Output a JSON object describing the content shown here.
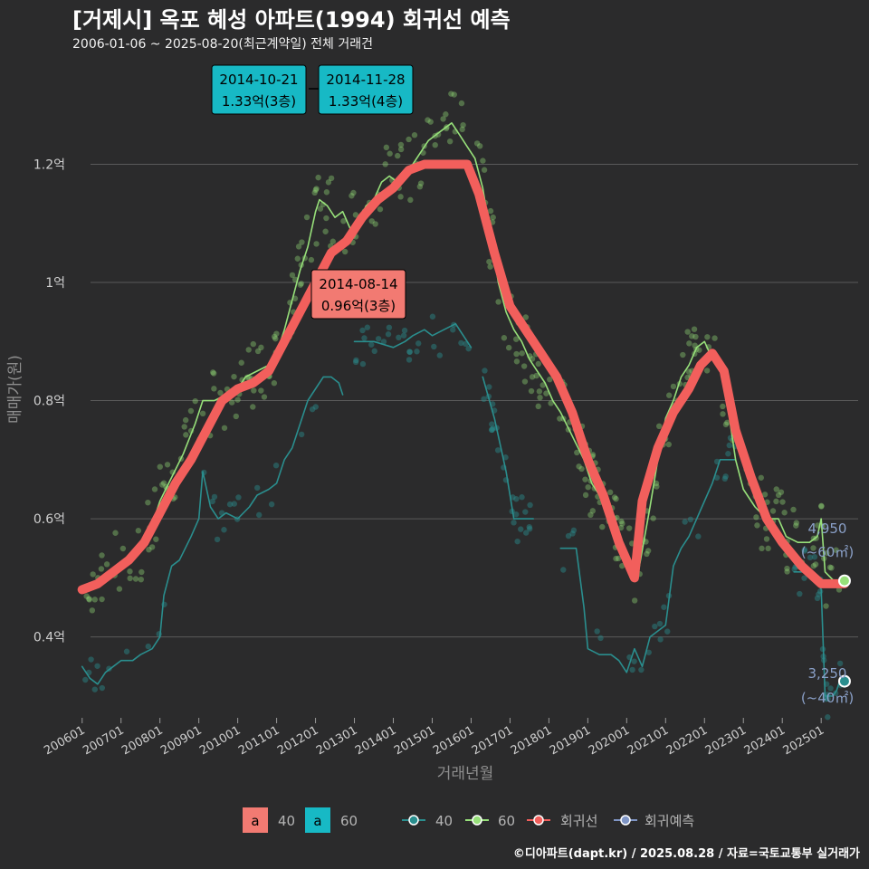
{
  "header": {
    "title": "[거제시] 옥포 혜성 아파트(1994) 회귀선 예측",
    "subtitle": "2006-01-06 ~ 2025-08-20(최근계약일) 전체 거래건"
  },
  "caption": "©디아파트(dapt.kr) / 2025.08.28 / 자료=국토교통부 실거래가",
  "colors": {
    "background": "#2b2b2c",
    "grid": "#5a5a5a",
    "series_40": "#2a8e8e",
    "series_60": "#97e07a",
    "regression": "#f25f5c",
    "forecast": "#7f95c5",
    "callout_40": "#f27a72",
    "callout_60": "#17b9c5",
    "end_label": "#8aa0c8"
  },
  "chart_data": {
    "type": "line",
    "xlabel": "거래년월",
    "ylabel": "매매가(원)",
    "ylim": [
      0.26,
      1.38
    ],
    "y_unit": "억",
    "yticks": [
      {
        "value": 0.4,
        "label": "0.4억"
      },
      {
        "value": 0.6,
        "label": "0.6억"
      },
      {
        "value": 0.8,
        "label": "0.8억"
      },
      {
        "value": 1.0,
        "label": "1억"
      },
      {
        "value": 1.2,
        "label": "1.2억"
      }
    ],
    "xlim": [
      2005.75,
      2025.95
    ],
    "xticks": [
      {
        "value": 2006.0,
        "label": "200601"
      },
      {
        "value": 2007.0,
        "label": "200701"
      },
      {
        "value": 2008.0,
        "label": "200801"
      },
      {
        "value": 2009.0,
        "label": "200901"
      },
      {
        "value": 2010.0,
        "label": "201001"
      },
      {
        "value": 2011.0,
        "label": "201101"
      },
      {
        "value": 2012.0,
        "label": "201201"
      },
      {
        "value": 2013.0,
        "label": "201301"
      },
      {
        "value": 2014.0,
        "label": "201401"
      },
      {
        "value": 2015.0,
        "label": "201501"
      },
      {
        "value": 2016.0,
        "label": "201601"
      },
      {
        "value": 2017.0,
        "label": "201701"
      },
      {
        "value": 2018.0,
        "label": "201801"
      },
      {
        "value": 2019.0,
        "label": "201901"
      },
      {
        "value": 2020.0,
        "label": "202001"
      },
      {
        "value": 2021.0,
        "label": "202101"
      },
      {
        "value": 2022.0,
        "label": "202201"
      },
      {
        "value": 2023.0,
        "label": "202301"
      },
      {
        "value": 2024.0,
        "label": "202401"
      },
      {
        "value": 2025.0,
        "label": "202501"
      }
    ],
    "series": [
      {
        "name": "40",
        "points": [
          [
            2006.0,
            0.35
          ],
          [
            2006.2,
            0.33
          ],
          [
            2006.4,
            0.32
          ],
          [
            2006.6,
            0.34
          ],
          [
            2006.8,
            0.35
          ],
          [
            2007.0,
            0.36
          ],
          [
            2007.3,
            0.36
          ],
          [
            2007.5,
            0.37
          ],
          [
            2007.8,
            0.38
          ],
          [
            2008.0,
            0.4
          ],
          [
            2008.1,
            0.47
          ],
          [
            2008.3,
            0.52
          ],
          [
            2008.5,
            0.53
          ],
          [
            2008.8,
            0.57
          ],
          [
            2009.0,
            0.6
          ],
          [
            2009.1,
            0.68
          ],
          [
            2009.3,
            0.62
          ],
          [
            2009.5,
            0.6
          ],
          [
            2009.7,
            0.61
          ],
          [
            2010.0,
            0.6
          ],
          [
            2010.3,
            0.62
          ],
          [
            2010.5,
            0.64
          ],
          [
            2010.8,
            0.65
          ],
          [
            2011.0,
            0.66
          ],
          [
            2011.2,
            0.7
          ],
          [
            2011.4,
            0.72
          ],
          [
            2011.6,
            0.76
          ],
          [
            2011.8,
            0.8
          ],
          [
            2012.0,
            0.82
          ],
          [
            2012.2,
            0.84
          ],
          [
            2012.4,
            0.84
          ],
          [
            2012.6,
            0.83
          ],
          [
            2012.7,
            0.81
          ]
        ]
      },
      {
        "name": "40b",
        "points": [
          [
            2013.0,
            0.9
          ],
          [
            2013.5,
            0.9
          ],
          [
            2014.0,
            0.89
          ],
          [
            2014.3,
            0.9
          ],
          [
            2014.5,
            0.91
          ],
          [
            2014.8,
            0.92
          ],
          [
            2015.0,
            0.91
          ],
          [
            2015.3,
            0.92
          ],
          [
            2015.6,
            0.93
          ],
          [
            2015.8,
            0.91
          ],
          [
            2016.0,
            0.89
          ]
        ]
      },
      {
        "name": "40c",
        "points": [
          [
            2016.3,
            0.84
          ],
          [
            2016.6,
            0.77
          ],
          [
            2016.9,
            0.68
          ],
          [
            2017.1,
            0.6
          ],
          [
            2017.6,
            0.6
          ]
        ]
      },
      {
        "name": "40d",
        "points": [
          [
            2018.3,
            0.55
          ],
          [
            2018.7,
            0.55
          ],
          [
            2018.9,
            0.45
          ],
          [
            2019.0,
            0.38
          ],
          [
            2019.3,
            0.37
          ],
          [
            2019.6,
            0.37
          ],
          [
            2019.8,
            0.36
          ],
          [
            2020.0,
            0.34
          ],
          [
            2020.2,
            0.38
          ],
          [
            2020.4,
            0.35
          ],
          [
            2020.6,
            0.4
          ],
          [
            2020.8,
            0.41
          ],
          [
            2021.0,
            0.42
          ],
          [
            2021.1,
            0.47
          ],
          [
            2021.2,
            0.52
          ],
          [
            2021.4,
            0.55
          ],
          [
            2021.6,
            0.57
          ],
          [
            2021.8,
            0.6
          ],
          [
            2022.0,
            0.63
          ],
          [
            2022.2,
            0.66
          ],
          [
            2022.4,
            0.7
          ],
          [
            2022.8,
            0.7
          ]
        ]
      },
      {
        "name": "40e",
        "points": [
          [
            2024.3,
            0.51
          ],
          [
            2024.6,
            0.51
          ],
          [
            2024.9,
            0.5
          ],
          [
            2025.0,
            0.48
          ],
          [
            2025.1,
            0.3
          ],
          [
            2025.3,
            0.3
          ],
          [
            2025.4,
            0.31
          ],
          [
            2025.5,
            0.33
          ],
          [
            2025.6,
            0.325
          ]
        ]
      },
      {
        "name": "60",
        "points": [
          [
            2006.0,
            0.48
          ],
          [
            2006.3,
            0.49
          ],
          [
            2006.6,
            0.5
          ],
          [
            2006.9,
            0.52
          ],
          [
            2007.2,
            0.53
          ],
          [
            2007.5,
            0.55
          ],
          [
            2007.8,
            0.59
          ],
          [
            2008.0,
            0.63
          ],
          [
            2008.3,
            0.67
          ],
          [
            2008.6,
            0.71
          ],
          [
            2008.9,
            0.76
          ],
          [
            2009.1,
            0.8
          ],
          [
            2009.4,
            0.8
          ],
          [
            2009.7,
            0.81
          ],
          [
            2010.0,
            0.82
          ],
          [
            2010.2,
            0.84
          ],
          [
            2010.5,
            0.85
          ],
          [
            2010.8,
            0.86
          ],
          [
            2011.0,
            0.88
          ],
          [
            2011.2,
            0.92
          ],
          [
            2011.4,
            0.97
          ],
          [
            2011.6,
            1.02
          ],
          [
            2011.8,
            1.06
          ],
          [
            2012.0,
            1.12
          ],
          [
            2012.1,
            1.14
          ],
          [
            2012.3,
            1.13
          ],
          [
            2012.5,
            1.11
          ],
          [
            2012.7,
            1.12
          ],
          [
            2012.9,
            1.09
          ],
          [
            2013.1,
            1.1
          ],
          [
            2013.3,
            1.13
          ],
          [
            2013.5,
            1.14
          ],
          [
            2013.7,
            1.17
          ],
          [
            2013.9,
            1.18
          ],
          [
            2014.1,
            1.17
          ],
          [
            2014.3,
            1.19
          ],
          [
            2014.5,
            1.2
          ],
          [
            2014.7,
            1.22
          ],
          [
            2014.9,
            1.24
          ],
          [
            2015.1,
            1.25
          ],
          [
            2015.3,
            1.26
          ],
          [
            2015.5,
            1.27
          ],
          [
            2015.7,
            1.25
          ],
          [
            2015.9,
            1.23
          ],
          [
            2016.1,
            1.21
          ],
          [
            2016.3,
            1.16
          ],
          [
            2016.5,
            1.08
          ],
          [
            2016.7,
            1.0
          ],
          [
            2016.9,
            0.95
          ],
          [
            2017.1,
            0.92
          ],
          [
            2017.3,
            0.9
          ],
          [
            2017.5,
            0.87
          ],
          [
            2017.7,
            0.85
          ],
          [
            2017.9,
            0.83
          ],
          [
            2018.1,
            0.8
          ],
          [
            2018.3,
            0.78
          ],
          [
            2018.6,
            0.74
          ],
          [
            2018.9,
            0.7
          ],
          [
            2019.1,
            0.66
          ],
          [
            2019.3,
            0.64
          ],
          [
            2019.6,
            0.6
          ],
          [
            2019.9,
            0.55
          ],
          [
            2020.1,
            0.52
          ],
          [
            2020.3,
            0.51
          ],
          [
            2020.6,
            0.62
          ],
          [
            2020.8,
            0.7
          ],
          [
            2021.0,
            0.77
          ],
          [
            2021.2,
            0.8
          ],
          [
            2021.4,
            0.84
          ],
          [
            2021.6,
            0.86
          ],
          [
            2021.8,
            0.89
          ],
          [
            2022.0,
            0.9
          ],
          [
            2022.2,
            0.87
          ],
          [
            2022.4,
            0.86
          ],
          [
            2022.6,
            0.79
          ],
          [
            2022.8,
            0.7
          ],
          [
            2023.0,
            0.65
          ],
          [
            2023.3,
            0.62
          ],
          [
            2023.6,
            0.6
          ],
          [
            2023.9,
            0.6
          ],
          [
            2024.1,
            0.57
          ],
          [
            2024.4,
            0.56
          ],
          [
            2024.7,
            0.56
          ],
          [
            2024.9,
            0.57
          ],
          [
            2025.0,
            0.6
          ],
          [
            2025.1,
            0.51
          ],
          [
            2025.4,
            0.49
          ],
          [
            2025.6,
            0.495
          ]
        ]
      },
      {
        "name": "회귀선",
        "points": [
          [
            2006.0,
            0.48
          ],
          [
            2006.4,
            0.49
          ],
          [
            2006.8,
            0.51
          ],
          [
            2007.2,
            0.53
          ],
          [
            2007.6,
            0.56
          ],
          [
            2008.0,
            0.61
          ],
          [
            2008.4,
            0.66
          ],
          [
            2008.8,
            0.7
          ],
          [
            2009.2,
            0.75
          ],
          [
            2009.6,
            0.8
          ],
          [
            2010.0,
            0.82
          ],
          [
            2010.4,
            0.83
          ],
          [
            2010.8,
            0.85
          ],
          [
            2011.2,
            0.9
          ],
          [
            2011.6,
            0.95
          ],
          [
            2012.0,
            1.0
          ],
          [
            2012.4,
            1.05
          ],
          [
            2012.8,
            1.07
          ],
          [
            2013.2,
            1.11
          ],
          [
            2013.6,
            1.14
          ],
          [
            2014.0,
            1.16
          ],
          [
            2014.4,
            1.19
          ],
          [
            2014.8,
            1.2
          ],
          [
            2015.2,
            1.2
          ],
          [
            2015.6,
            1.2
          ],
          [
            2015.9,
            1.2
          ],
          [
            2016.2,
            1.15
          ],
          [
            2016.6,
            1.05
          ],
          [
            2017.0,
            0.96
          ],
          [
            2017.4,
            0.92
          ],
          [
            2017.8,
            0.88
          ],
          [
            2018.2,
            0.84
          ],
          [
            2018.6,
            0.78
          ],
          [
            2019.0,
            0.7
          ],
          [
            2019.4,
            0.64
          ],
          [
            2019.8,
            0.56
          ],
          [
            2020.2,
            0.5
          ],
          [
            2020.4,
            0.63
          ],
          [
            2020.8,
            0.72
          ],
          [
            2021.2,
            0.78
          ],
          [
            2021.6,
            0.82
          ],
          [
            2021.9,
            0.86
          ],
          [
            2022.2,
            0.88
          ],
          [
            2022.5,
            0.85
          ],
          [
            2022.8,
            0.75
          ],
          [
            2023.2,
            0.67
          ],
          [
            2023.6,
            0.6
          ],
          [
            2024.0,
            0.56
          ],
          [
            2024.5,
            0.52
          ],
          [
            2025.0,
            0.49
          ],
          [
            2025.6,
            0.49
          ]
        ]
      }
    ],
    "callouts": [
      {
        "date": "2014-10-21",
        "value": "1.33억(3층)",
        "kind": "60"
      },
      {
        "date": "2014-11-28",
        "value": "1.33억(4층)",
        "kind": "60"
      },
      {
        "date": "2014-08-14",
        "value": "0.96억(3층)",
        "kind": "40"
      }
    ],
    "end_labels": [
      {
        "value": "4,950",
        "area": "(~60㎡)",
        "y": 0.495
      },
      {
        "value": "3,250",
        "area": "(~40㎡)",
        "y": 0.325
      }
    ]
  },
  "legend": {
    "fill_items": [
      {
        "glyph": "a",
        "label": "40"
      },
      {
        "glyph": "a",
        "label": "60"
      }
    ],
    "line_items": [
      {
        "label": "40"
      },
      {
        "label": "60"
      },
      {
        "label": "회귀선"
      },
      {
        "label": "회귀예측"
      }
    ]
  }
}
